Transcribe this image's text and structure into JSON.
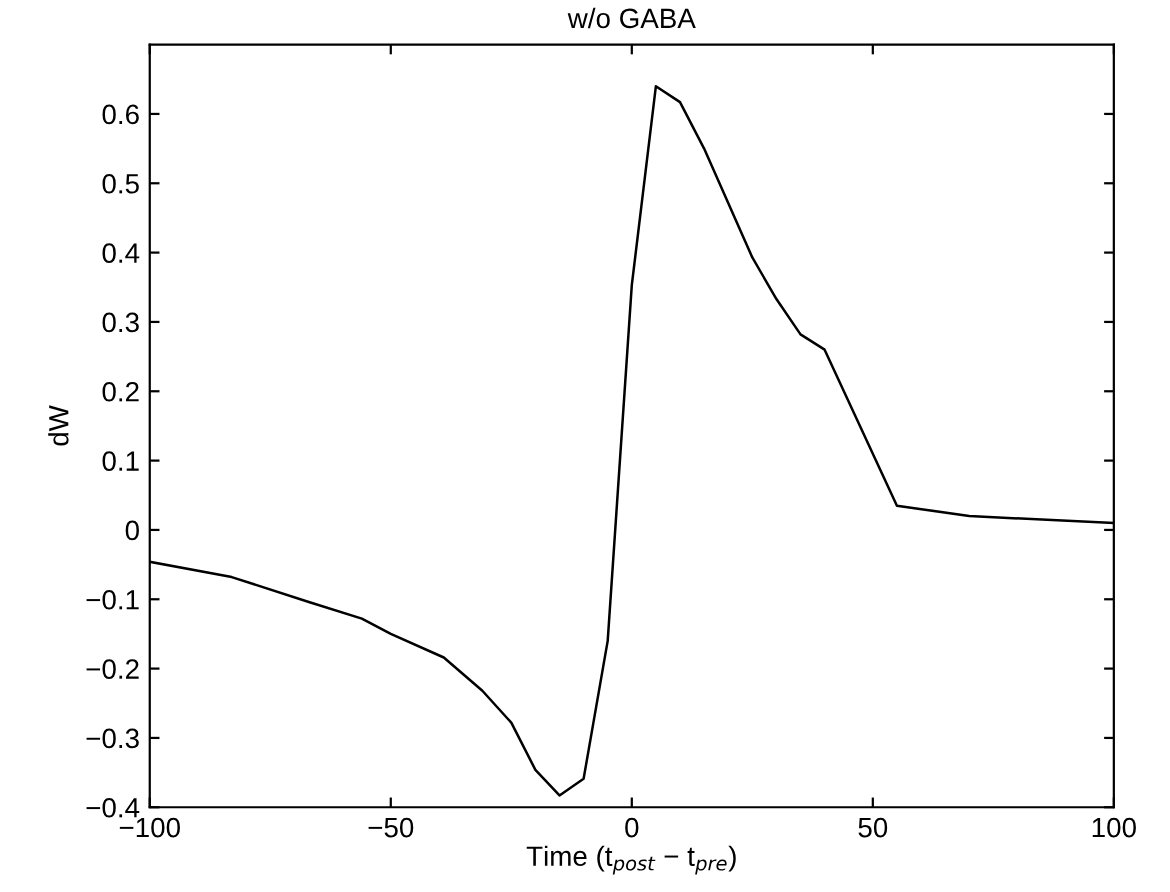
{
  "chart_data": {
    "type": "line",
    "title": "w/o GABA",
    "xlabel": "Time (t$_{post}$ − t$_{pre}$)",
    "ylabel": "dW",
    "x": [
      -100,
      -83,
      -67,
      -56,
      -50,
      -39,
      -31,
      -25,
      -20,
      -15,
      -10,
      -5,
      0,
      5,
      10,
      15,
      25,
      30,
      35,
      40,
      55,
      59,
      70,
      100
    ],
    "series": [
      {
        "color": "#000000",
        "values": [
          -0.046,
          -0.068,
          -0.104,
          -0.128,
          -0.15,
          -0.184,
          -0.232,
          -0.278,
          -0.346,
          -0.383,
          -0.359,
          -0.16,
          0.353,
          0.64,
          0.617,
          0.55,
          0.393,
          0.333,
          0.282,
          0.26,
          0.035,
          0.031,
          0.02,
          0.01
        ]
      }
    ],
    "xlim": [
      -100,
      100
    ],
    "xticks": [
      -100,
      -50,
      0,
      50,
      100
    ],
    "ylim": [
      -0.4,
      0.7
    ],
    "yticks": [
      -0.4,
      -0.3,
      -0.2,
      -0.1,
      0,
      0.1,
      0.2,
      0.3,
      0.4,
      0.5,
      0.6
    ],
    "grid": false,
    "legend": false,
    "line_style": "solid"
  }
}
